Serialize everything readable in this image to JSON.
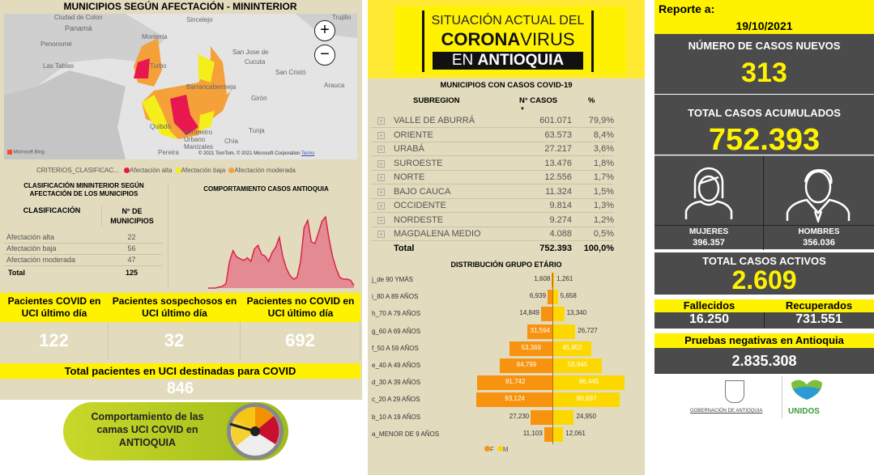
{
  "map": {
    "title": "MUNICIPIOS SEGÚN AFECTACIÓN - MININTERIOR",
    "places": [
      "Ciudad de Colon",
      "Panamá",
      "Penonomé",
      "Las Tablas",
      "Sincelejo",
      "Montería",
      "Turbo",
      "San Jose de",
      "Cucuta",
      "San Cristó",
      "Arauca",
      "Barrancabermeja",
      "Girón",
      "Quibdó",
      "Perímetro Urbano",
      "Manizales",
      "Tunja",
      "Pereira",
      "Chía",
      "Trujillo"
    ],
    "zoom_in": "+",
    "zoom_out": "−",
    "bing": "Microsoft Bing",
    "copyright": "© 2021 TomTom, © 2021 Microsoft Corporation",
    "terms": "Terms",
    "legend": {
      "field": "CRITERIOS_CLASIFICAC...",
      "items": [
        {
          "label": "Afectación alta",
          "color": "#e8174f"
        },
        {
          "label": "Afectación baja",
          "color": "#f4ee1a"
        },
        {
          "label": "Afectación moderada",
          "color": "#f4a13a"
        }
      ]
    }
  },
  "clasificacion": {
    "title": "CLASIFICACIÓN MININTERIOR SEGÚN AFECTACIÓN DE LOS MUNICIPIOS",
    "col1": "CLASIFICACIÓN",
    "col2": "N° DE MUNICIPIOS",
    "rows": [
      {
        "label": "Afectación alta",
        "value": "22"
      },
      {
        "label": "Afectación baja",
        "value": "56"
      },
      {
        "label": "Afectación moderada",
        "value": "47"
      }
    ],
    "total_label": "Total",
    "total_value": "125"
  },
  "uci": {
    "items": [
      {
        "title": "Pacientes COVID en UCI último día",
        "value": "122"
      },
      {
        "title": "Pacientes sospechosos en UCI último día",
        "value": "32"
      },
      {
        "title": "Pacientes no COVID en UCI último día",
        "value": "692"
      }
    ],
    "total_title": "Total pacientes en UCI destinadas para COVID",
    "total_value": "846",
    "gauge_button": "Comportamiento de las camas UCI COVID en ANTIOQUIA"
  },
  "header": {
    "line1": "SITUACIÓN ACTUAL DEL",
    "line2a": "CORONA",
    "line2b": "VIRUS",
    "line3a": "EN ",
    "line3b": "ANTIOQUIA"
  },
  "subregion_table": {
    "title": "MUNICIPIOS CON CASOS COVID-19",
    "col1": "SUBREGION",
    "col2": "N° CASOS",
    "col3": "%",
    "rows": [
      [
        "VALLE DE ABURRÁ",
        "601.071",
        "79,9%"
      ],
      [
        "ORIENTE",
        "63.573",
        "8,4%"
      ],
      [
        "URABÁ",
        "27.217",
        "3,6%"
      ],
      [
        "SUROESTE",
        "13.476",
        "1,8%"
      ],
      [
        "NORTE",
        "12.556",
        "1,7%"
      ],
      [
        "BAJO CAUCA",
        "11.324",
        "1,5%"
      ],
      [
        "OCCIDENTE",
        "9.814",
        "1,3%"
      ],
      [
        "NORDESTE",
        "9.274",
        "1,2%"
      ],
      [
        "MAGDALENA MEDIO",
        "4.088",
        "0,5%"
      ]
    ],
    "total": [
      "Total",
      "752.393",
      "100,0%"
    ]
  },
  "report": {
    "label": "Reporte a:",
    "date": "19/10/2021",
    "new_title": "NÚMERO DE CASOS NUEVOS",
    "new_value": "313",
    "acc_title": "TOTAL CASOS ACUMULADOS",
    "acc_value": "752.393",
    "women_label": "MUJERES",
    "women_value": "396.357",
    "men_label": "HOMBRES",
    "men_value": "356.036",
    "active_title": "TOTAL CASOS ACTIVOS",
    "active_value": "2.609",
    "deaths_label": "Fallecidos",
    "deaths_value": "16.250",
    "recovered_label": "Recuperados",
    "recovered_value": "731.551",
    "neg_title": "Pruebas negativas en Antioquia",
    "neg_value": "2.835.308",
    "logo1": "GOBERNACIÓN DE ANTIOQUIA",
    "logo2": "UNIDOS"
  },
  "chart_data": [
    {
      "type": "bar",
      "title": "DISTRIBUCIÓN GRUPO ETÁRIO",
      "orientation": "horizontal-pyramid",
      "categories": [
        "j_de 90 YMÁS",
        "i_80 A 89 AÑOS",
        "h_70 A 79 AÑOS",
        "g_60 A 69 AÑOS",
        "f_50 A 59 AÑOS",
        "e_40 A 49 AÑOS",
        "d_30 A 39 AÑOS",
        "c_20 A 29 AÑOS",
        "b_10 A 19 AÑOS",
        "a_MENOR DE 9 AÑOS"
      ],
      "series": [
        {
          "name": "F",
          "color": "#f7930e",
          "values": [
            1608,
            6939,
            14849,
            31594,
            53369,
            64799,
            91742,
            93124,
            27230,
            11103
          ],
          "labels": [
            "1,608",
            "6,939",
            "14,849",
            "31,594",
            "53,369",
            "64,799",
            "91,742",
            "93,124",
            "27,230",
            "11,103"
          ]
        },
        {
          "name": "M",
          "color": "#fcd800",
          "values": [
            1261,
            5658,
            13340,
            26727,
            45952,
            58945,
            86445,
            80697,
            24950,
            12061
          ],
          "labels": [
            "1,261",
            "5,658",
            "13,340",
            "26,727",
            "45,952",
            "58,945",
            "86,445",
            "80,697",
            "24,950",
            "12,061"
          ]
        }
      ],
      "legend": "bottom"
    },
    {
      "type": "area",
      "title": "COMPORTAMIENTO CASOS ANTIOQUIA",
      "color": "#e05a6c",
      "values": [
        0,
        0,
        0,
        1,
        2,
        5,
        30,
        42,
        35,
        33,
        31,
        34,
        30,
        44,
        48,
        38,
        36,
        30,
        40,
        46,
        57,
        35,
        22,
        14,
        10,
        12,
        30,
        68,
        76,
        52,
        50,
        62,
        75,
        80,
        55,
        35,
        22,
        12,
        10,
        10,
        9,
        3
      ]
    }
  ]
}
